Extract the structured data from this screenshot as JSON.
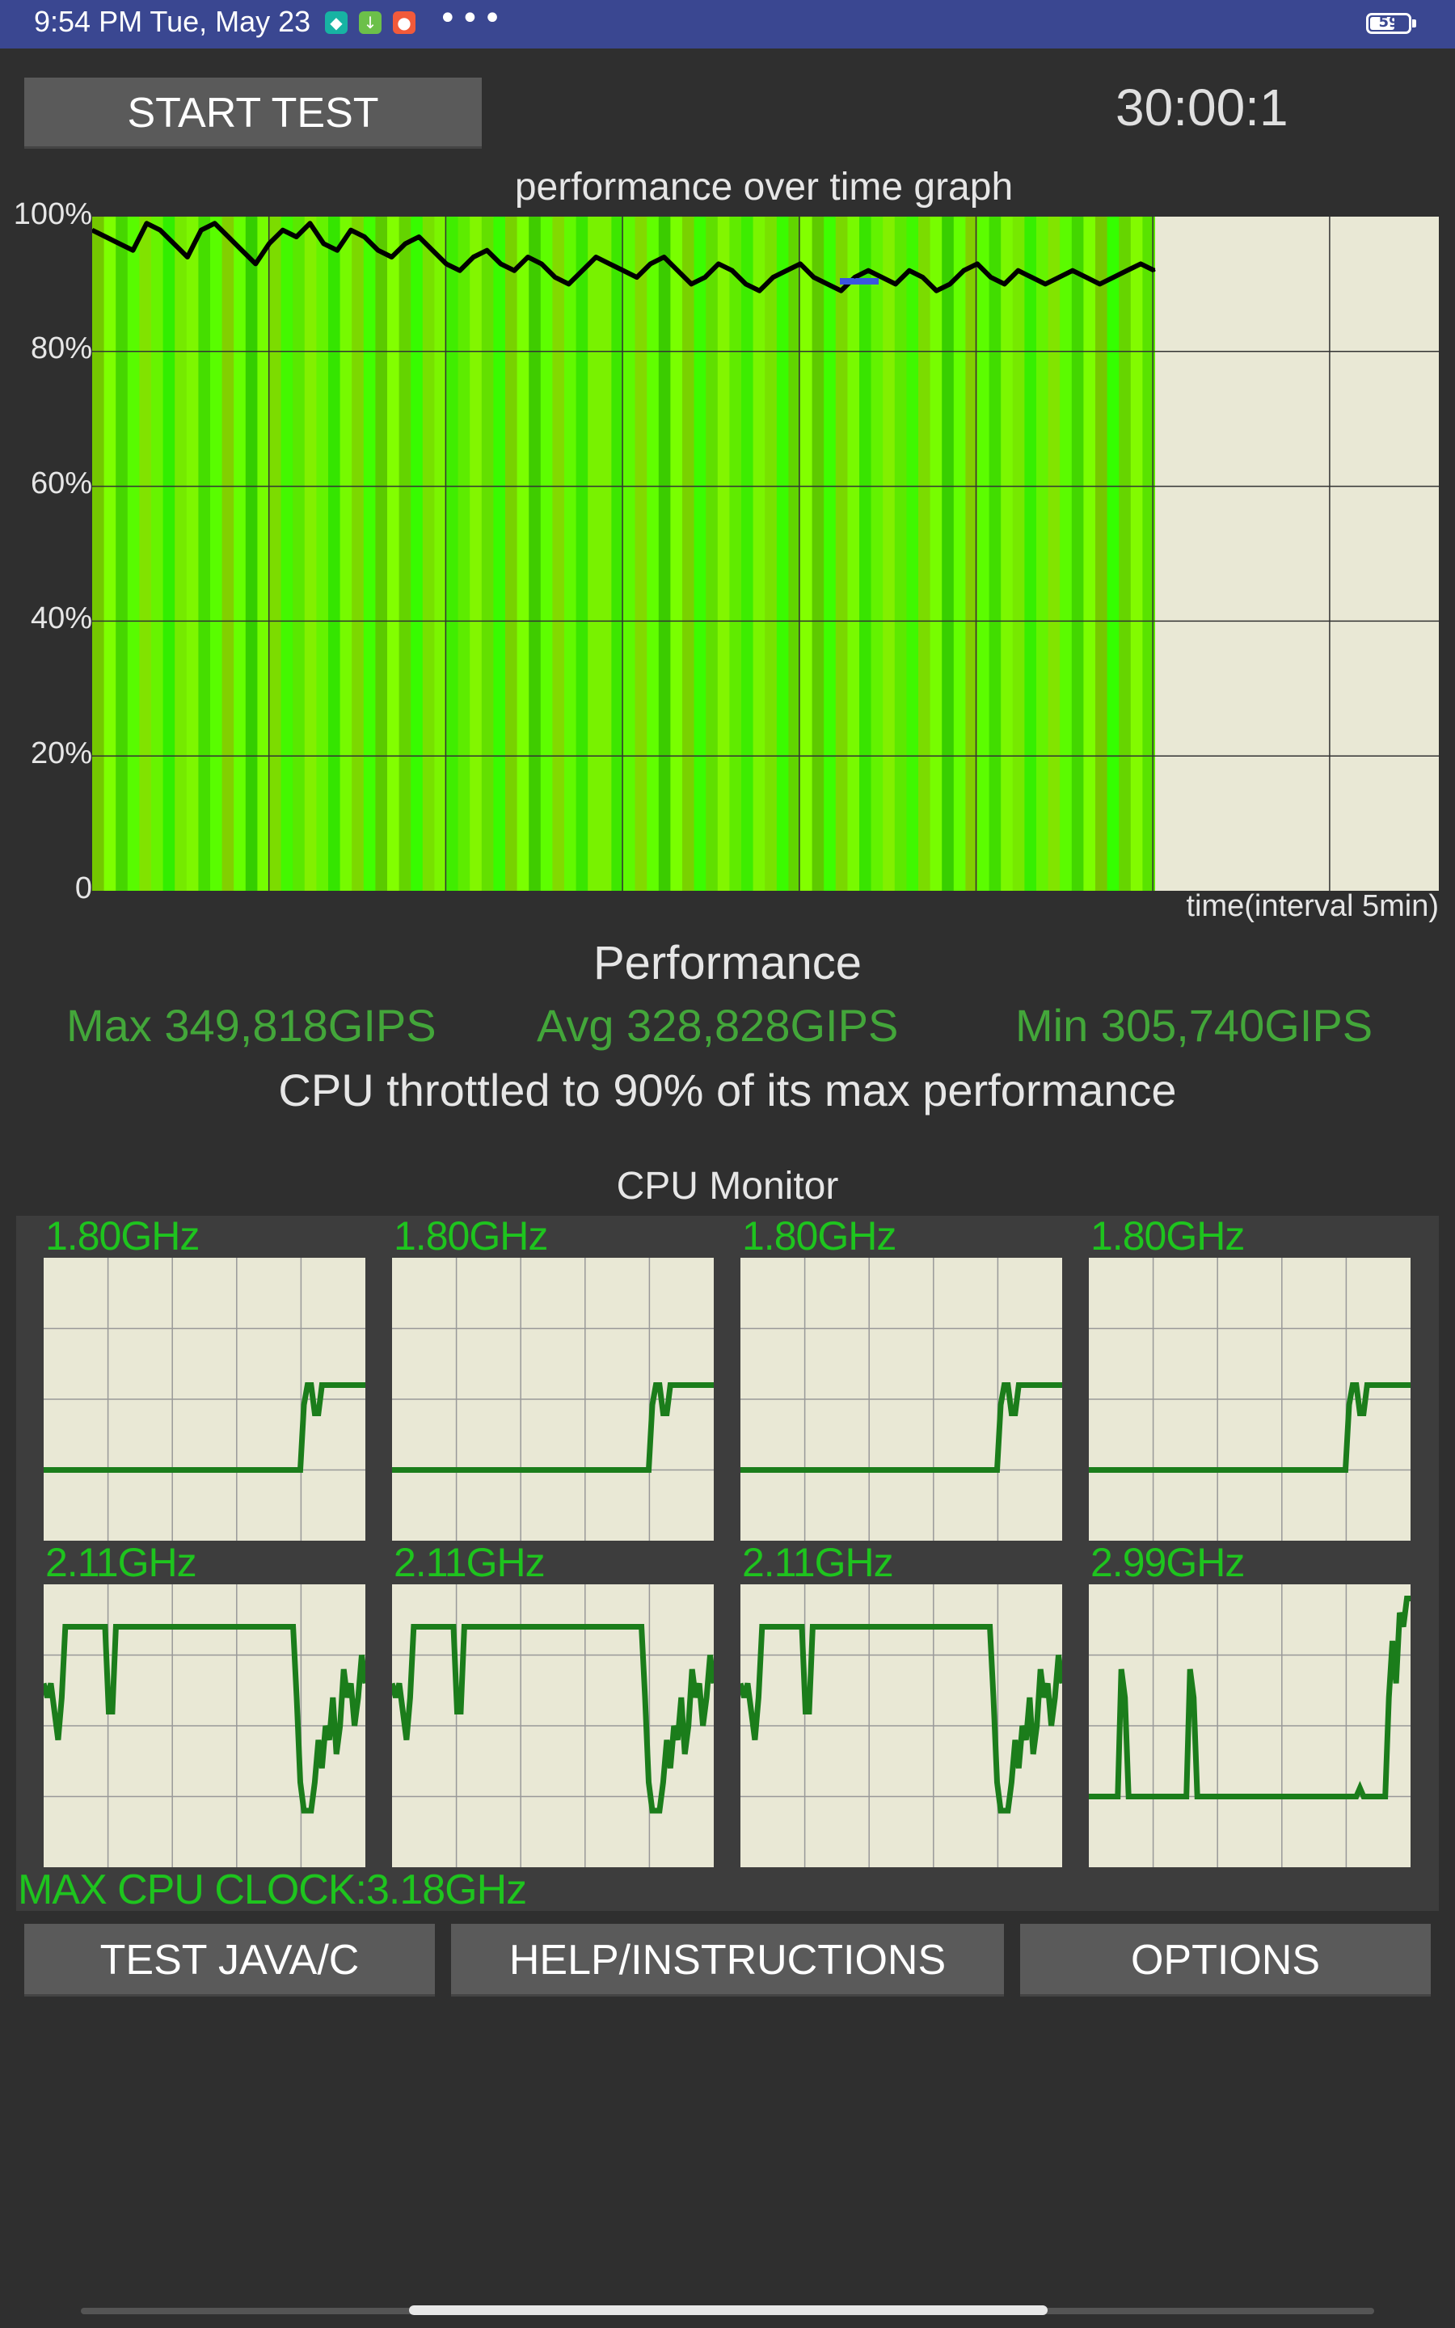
{
  "status_bar": {
    "time": "9:54 PM Tue, May 23",
    "apps": [
      {
        "icon": "shield-app-icon",
        "color": "#17b3a3"
      },
      {
        "icon": "download-app-icon",
        "color": "#6cc04a"
      },
      {
        "icon": "app-icon",
        "color": "#f25a3a"
      }
    ],
    "more": "•••",
    "battery_level": "59",
    "battery_fraction": 0.59
  },
  "controls": {
    "start_label": "START TEST",
    "timer": "30:00:1"
  },
  "graph": {
    "title": "performance over time graph",
    "y_ticks": [
      "100%",
      "80%",
      "60%",
      "40%",
      "20%",
      "0"
    ],
    "x_label": "time(interval 5min)"
  },
  "performance": {
    "heading": "Performance",
    "max": "Max 349,818GIPS",
    "avg": "Avg 328,828GIPS",
    "min": "Min 305,740GIPS",
    "throttle": "CPU throttled to 90% of its max performance"
  },
  "cpu_monitor": {
    "heading": "CPU Monitor",
    "cores": [
      {
        "freq": "1.80GHz"
      },
      {
        "freq": "1.80GHz"
      },
      {
        "freq": "1.80GHz"
      },
      {
        "freq": "1.80GHz"
      },
      {
        "freq": "2.11GHz"
      },
      {
        "freq": "2.11GHz"
      },
      {
        "freq": "2.11GHz"
      },
      {
        "freq": "2.99GHz"
      }
    ],
    "max_clock": "MAX CPU CLOCK:3.18GHz"
  },
  "buttons": {
    "test_javac": "TEST JAVA/C",
    "help": "HELP/INSTRUCTIONS",
    "options": "OPTIONS"
  },
  "chart_data": [
    {
      "type": "area",
      "title": "performance over time graph",
      "xlabel": "time(interval 5min)",
      "ylabel": "",
      "ylim": [
        0,
        100
      ],
      "y_ticks": [
        "0",
        "20%",
        "40%",
        "60%",
        "80%",
        "100%"
      ],
      "grid": true,
      "series": [
        {
          "values": [
            98,
            97,
            96,
            95,
            99,
            98,
            96,
            94,
            98,
            99,
            97,
            95,
            93,
            96,
            98,
            97,
            99,
            96,
            95,
            98,
            97,
            95,
            94,
            96,
            97,
            95,
            93,
            92,
            94,
            95,
            93,
            92,
            94,
            93,
            91,
            90,
            92,
            94,
            93,
            92,
            91,
            93,
            94,
            92,
            90,
            91,
            93,
            92,
            90,
            89,
            91,
            92,
            93,
            91,
            90,
            89,
            91,
            92,
            91,
            90,
            92,
            91,
            89,
            90,
            92,
            93,
            91,
            90,
            92,
            91,
            90,
            91,
            92,
            91,
            90,
            91,
            92,
            93,
            92
          ]
        }
      ]
    },
    {
      "type": "line",
      "title": "CPU Monitor",
      "cores": [
        {
          "label": "1.80GHz",
          "values": [
            0.25,
            0.25,
            0.25,
            0.25,
            0.25,
            0.25,
            0.25,
            0.25,
            0.25,
            0.25,
            0.25,
            0.25,
            0.25,
            0.25,
            0.25,
            0.25,
            0.25,
            0.25,
            0.25,
            0.25,
            0.25,
            0.25,
            0.25,
            0.25,
            0.25,
            0.25,
            0.25,
            0.25,
            0.25,
            0.25,
            0.25,
            0.25,
            0.25,
            0.25,
            0.25,
            0.25,
            0.25,
            0.25,
            0.25,
            0.25,
            0.25,
            0.25,
            0.25,
            0.25,
            0.25,
            0.25,
            0.25,
            0.25,
            0.25,
            0.25,
            0.25,
            0.25,
            0.25,
            0.25,
            0.25,
            0.25,
            0.25,
            0.25,
            0.25,
            0.25,
            0.25,
            0.25,
            0.25,
            0.25,
            0.25,
            0.25,
            0.25,
            0.25,
            0.25,
            0.25,
            0.25,
            0.25,
            0.48,
            0.55,
            0.55,
            0.45,
            0.45,
            0.55,
            0.55,
            0.55,
            0.55,
            0.55,
            0.55,
            0.55,
            0.55,
            0.55,
            0.55,
            0.55,
            0.55,
            0.55
          ]
        },
        {
          "label": "1.80GHz",
          "values": [
            0.25,
            0.25,
            0.25,
            0.25,
            0.25,
            0.25,
            0.25,
            0.25,
            0.25,
            0.25,
            0.25,
            0.25,
            0.25,
            0.25,
            0.25,
            0.25,
            0.25,
            0.25,
            0.25,
            0.25,
            0.25,
            0.25,
            0.25,
            0.25,
            0.25,
            0.25,
            0.25,
            0.25,
            0.25,
            0.25,
            0.25,
            0.25,
            0.25,
            0.25,
            0.25,
            0.25,
            0.25,
            0.25,
            0.25,
            0.25,
            0.25,
            0.25,
            0.25,
            0.25,
            0.25,
            0.25,
            0.25,
            0.25,
            0.25,
            0.25,
            0.25,
            0.25,
            0.25,
            0.25,
            0.25,
            0.25,
            0.25,
            0.25,
            0.25,
            0.25,
            0.25,
            0.25,
            0.25,
            0.25,
            0.25,
            0.25,
            0.25,
            0.25,
            0.25,
            0.25,
            0.25,
            0.25,
            0.48,
            0.55,
            0.55,
            0.45,
            0.45,
            0.55,
            0.55,
            0.55,
            0.55,
            0.55,
            0.55,
            0.55,
            0.55,
            0.55,
            0.55,
            0.55,
            0.55,
            0.55
          ]
        },
        {
          "label": "1.80GHz",
          "values": [
            0.25,
            0.25,
            0.25,
            0.25,
            0.25,
            0.25,
            0.25,
            0.25,
            0.25,
            0.25,
            0.25,
            0.25,
            0.25,
            0.25,
            0.25,
            0.25,
            0.25,
            0.25,
            0.25,
            0.25,
            0.25,
            0.25,
            0.25,
            0.25,
            0.25,
            0.25,
            0.25,
            0.25,
            0.25,
            0.25,
            0.25,
            0.25,
            0.25,
            0.25,
            0.25,
            0.25,
            0.25,
            0.25,
            0.25,
            0.25,
            0.25,
            0.25,
            0.25,
            0.25,
            0.25,
            0.25,
            0.25,
            0.25,
            0.25,
            0.25,
            0.25,
            0.25,
            0.25,
            0.25,
            0.25,
            0.25,
            0.25,
            0.25,
            0.25,
            0.25,
            0.25,
            0.25,
            0.25,
            0.25,
            0.25,
            0.25,
            0.25,
            0.25,
            0.25,
            0.25,
            0.25,
            0.25,
            0.48,
            0.55,
            0.55,
            0.45,
            0.45,
            0.55,
            0.55,
            0.55,
            0.55,
            0.55,
            0.55,
            0.55,
            0.55,
            0.55,
            0.55,
            0.55,
            0.55,
            0.55
          ]
        },
        {
          "label": "1.80GHz",
          "values": [
            0.25,
            0.25,
            0.25,
            0.25,
            0.25,
            0.25,
            0.25,
            0.25,
            0.25,
            0.25,
            0.25,
            0.25,
            0.25,
            0.25,
            0.25,
            0.25,
            0.25,
            0.25,
            0.25,
            0.25,
            0.25,
            0.25,
            0.25,
            0.25,
            0.25,
            0.25,
            0.25,
            0.25,
            0.25,
            0.25,
            0.25,
            0.25,
            0.25,
            0.25,
            0.25,
            0.25,
            0.25,
            0.25,
            0.25,
            0.25,
            0.25,
            0.25,
            0.25,
            0.25,
            0.25,
            0.25,
            0.25,
            0.25,
            0.25,
            0.25,
            0.25,
            0.25,
            0.25,
            0.25,
            0.25,
            0.25,
            0.25,
            0.25,
            0.25,
            0.25,
            0.25,
            0.25,
            0.25,
            0.25,
            0.25,
            0.25,
            0.25,
            0.25,
            0.25,
            0.25,
            0.25,
            0.25,
            0.48,
            0.55,
            0.55,
            0.45,
            0.45,
            0.55,
            0.55,
            0.55,
            0.55,
            0.55,
            0.55,
            0.55,
            0.55,
            0.55,
            0.55,
            0.55,
            0.55,
            0.55
          ]
        },
        {
          "label": "2.11GHz",
          "values": [
            0.65,
            0.6,
            0.65,
            0.55,
            0.45,
            0.6,
            0.85,
            0.85,
            0.85,
            0.85,
            0.85,
            0.85,
            0.85,
            0.85,
            0.85,
            0.85,
            0.85,
            0.85,
            0.55,
            0.55,
            0.85,
            0.85,
            0.85,
            0.85,
            0.85,
            0.85,
            0.85,
            0.85,
            0.85,
            0.85,
            0.85,
            0.85,
            0.85,
            0.85,
            0.85,
            0.85,
            0.85,
            0.85,
            0.85,
            0.85,
            0.85,
            0.85,
            0.85,
            0.85,
            0.85,
            0.85,
            0.85,
            0.85,
            0.85,
            0.85,
            0.85,
            0.85,
            0.85,
            0.85,
            0.85,
            0.85,
            0.85,
            0.85,
            0.85,
            0.85,
            0.85,
            0.85,
            0.85,
            0.85,
            0.85,
            0.85,
            0.85,
            0.85,
            0.85,
            0.85,
            0.6,
            0.3,
            0.2,
            0.2,
            0.2,
            0.3,
            0.45,
            0.35,
            0.5,
            0.45,
            0.6,
            0.4,
            0.5,
            0.7,
            0.6,
            0.65,
            0.5,
            0.6,
            0.75,
            0.65
          ]
        },
        {
          "label": "2.11GHz",
          "values": [
            0.65,
            0.6,
            0.65,
            0.55,
            0.45,
            0.6,
            0.85,
            0.85,
            0.85,
            0.85,
            0.85,
            0.85,
            0.85,
            0.85,
            0.85,
            0.85,
            0.85,
            0.85,
            0.55,
            0.55,
            0.85,
            0.85,
            0.85,
            0.85,
            0.85,
            0.85,
            0.85,
            0.85,
            0.85,
            0.85,
            0.85,
            0.85,
            0.85,
            0.85,
            0.85,
            0.85,
            0.85,
            0.85,
            0.85,
            0.85,
            0.85,
            0.85,
            0.85,
            0.85,
            0.85,
            0.85,
            0.85,
            0.85,
            0.85,
            0.85,
            0.85,
            0.85,
            0.85,
            0.85,
            0.85,
            0.85,
            0.85,
            0.85,
            0.85,
            0.85,
            0.85,
            0.85,
            0.85,
            0.85,
            0.85,
            0.85,
            0.85,
            0.85,
            0.85,
            0.85,
            0.6,
            0.3,
            0.2,
            0.2,
            0.2,
            0.3,
            0.45,
            0.35,
            0.5,
            0.45,
            0.6,
            0.4,
            0.5,
            0.7,
            0.6,
            0.65,
            0.5,
            0.6,
            0.75,
            0.65
          ]
        },
        {
          "label": "2.11GHz",
          "values": [
            0.65,
            0.6,
            0.65,
            0.55,
            0.45,
            0.6,
            0.85,
            0.85,
            0.85,
            0.85,
            0.85,
            0.85,
            0.85,
            0.85,
            0.85,
            0.85,
            0.85,
            0.85,
            0.55,
            0.55,
            0.85,
            0.85,
            0.85,
            0.85,
            0.85,
            0.85,
            0.85,
            0.85,
            0.85,
            0.85,
            0.85,
            0.85,
            0.85,
            0.85,
            0.85,
            0.85,
            0.85,
            0.85,
            0.85,
            0.85,
            0.85,
            0.85,
            0.85,
            0.85,
            0.85,
            0.85,
            0.85,
            0.85,
            0.85,
            0.85,
            0.85,
            0.85,
            0.85,
            0.85,
            0.85,
            0.85,
            0.85,
            0.85,
            0.85,
            0.85,
            0.85,
            0.85,
            0.85,
            0.85,
            0.85,
            0.85,
            0.85,
            0.85,
            0.85,
            0.85,
            0.6,
            0.3,
            0.2,
            0.2,
            0.2,
            0.3,
            0.45,
            0.35,
            0.5,
            0.45,
            0.6,
            0.4,
            0.5,
            0.7,
            0.6,
            0.65,
            0.5,
            0.6,
            0.75,
            0.65
          ]
        },
        {
          "label": "2.99GHz",
          "values": [
            0.25,
            0.25,
            0.25,
            0.25,
            0.25,
            0.25,
            0.25,
            0.25,
            0.25,
            0.7,
            0.6,
            0.25,
            0.25,
            0.25,
            0.25,
            0.25,
            0.25,
            0.25,
            0.25,
            0.25,
            0.25,
            0.25,
            0.25,
            0.25,
            0.25,
            0.25,
            0.25,
            0.25,
            0.7,
            0.6,
            0.25,
            0.25,
            0.25,
            0.25,
            0.25,
            0.25,
            0.25,
            0.25,
            0.25,
            0.25,
            0.25,
            0.25,
            0.25,
            0.25,
            0.25,
            0.25,
            0.25,
            0.25,
            0.25,
            0.25,
            0.25,
            0.25,
            0.25,
            0.25,
            0.25,
            0.25,
            0.25,
            0.25,
            0.25,
            0.25,
            0.25,
            0.25,
            0.25,
            0.25,
            0.25,
            0.25,
            0.25,
            0.25,
            0.25,
            0.25,
            0.25,
            0.25,
            0.25,
            0.25,
            0.25,
            0.28,
            0.25,
            0.25,
            0.25,
            0.25,
            0.25,
            0.25,
            0.25,
            0.6,
            0.8,
            0.65,
            0.9,
            0.85,
            0.95,
            0.95
          ]
        }
      ]
    }
  ]
}
